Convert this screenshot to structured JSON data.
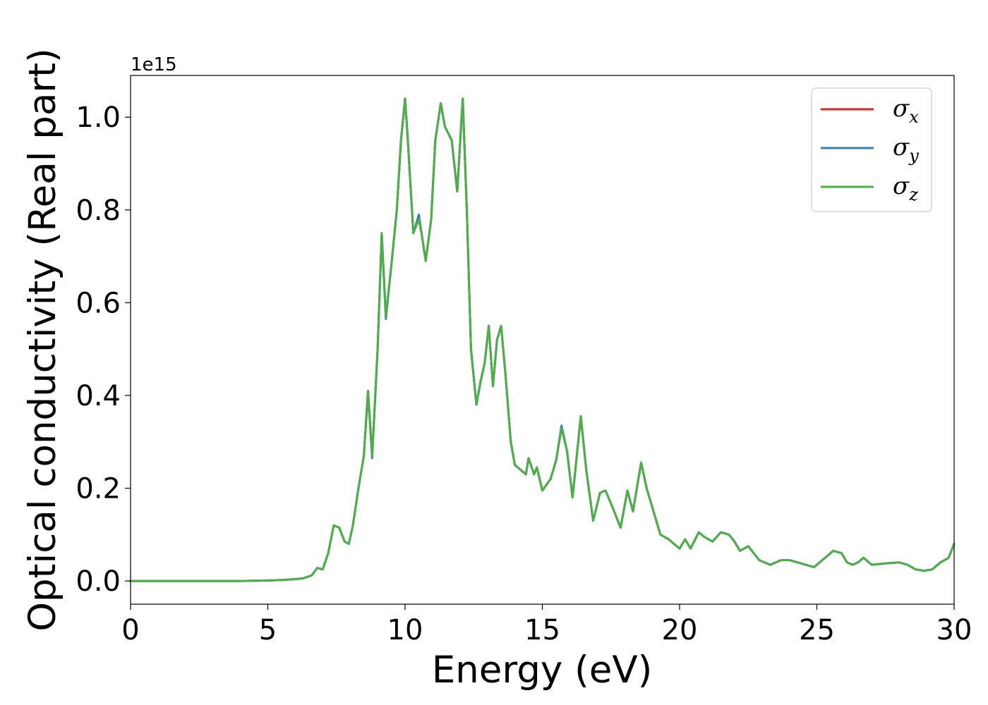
{
  "chart_data": {
    "type": "line",
    "xlabel": "Energy (eV)",
    "ylabel": "Optical conductivity (Real part)",
    "y_offset_label": "1e15",
    "y_scale": 1000000000000000.0,
    "xlim": [
      0,
      30
    ],
    "ylim": [
      -0.05,
      1.09
    ],
    "xticks": [
      0,
      5,
      10,
      15,
      20,
      25,
      30
    ],
    "xtick_labels": [
      "0",
      "5",
      "10",
      "15",
      "20",
      "25",
      "30"
    ],
    "yticks": [
      0.0,
      0.2,
      0.4,
      0.6,
      0.8,
      1.0
    ],
    "ytick_labels": [
      "0.0",
      "0.2",
      "0.4",
      "0.6",
      "0.8",
      "1.0"
    ],
    "grid": false,
    "legend_position": "top-right",
    "series": [
      {
        "name": "σx",
        "legend_symbol": "σ",
        "legend_sub": "x",
        "color": "#d62728",
        "x": [
          0,
          2,
          4,
          5,
          5.5,
          6,
          6.3,
          6.6,
          6.8,
          7.0,
          7.2,
          7.4,
          7.6,
          7.8,
          7.95,
          8.1,
          8.3,
          8.5,
          8.65,
          8.8,
          9.0,
          9.15,
          9.3,
          9.5,
          9.7,
          9.85,
          10.0,
          10.1,
          10.3,
          10.5,
          10.6,
          10.75,
          10.95,
          11.1,
          11.3,
          11.45,
          11.7,
          11.9,
          12.1,
          12.25,
          12.4,
          12.6,
          12.75,
          12.9,
          13.05,
          13.2,
          13.35,
          13.5,
          13.65,
          13.85,
          14.0,
          14.2,
          14.4,
          14.5,
          14.7,
          14.8,
          15.0,
          15.3,
          15.5,
          15.7,
          15.9,
          16.1,
          16.4,
          16.6,
          16.85,
          17.1,
          17.3,
          17.55,
          17.85,
          18.1,
          18.3,
          18.6,
          18.8,
          19.0,
          19.3,
          19.6,
          20.0,
          20.2,
          20.4,
          20.7,
          20.9,
          21.2,
          21.5,
          21.8,
          22.0,
          22.2,
          22.5,
          22.9,
          23.3,
          23.7,
          24.0,
          24.3,
          24.6,
          24.9,
          25.2,
          25.6,
          25.9,
          26.1,
          26.3,
          26.5,
          26.7,
          27.0,
          27.5,
          28.0,
          28.3,
          28.6,
          28.9,
          29.2,
          29.5,
          29.8,
          30.0
        ],
        "y": [
          0,
          0,
          0,
          0.001,
          0.002,
          0.004,
          0.006,
          0.012,
          0.028,
          0.025,
          0.06,
          0.12,
          0.115,
          0.085,
          0.08,
          0.12,
          0.2,
          0.27,
          0.41,
          0.27,
          0.5,
          0.75,
          0.57,
          0.68,
          0.8,
          0.95,
          1.04,
          0.95,
          0.75,
          0.78,
          0.75,
          0.69,
          0.78,
          0.95,
          1.03,
          0.98,
          0.95,
          0.84,
          1.04,
          0.8,
          0.5,
          0.38,
          0.43,
          0.47,
          0.55,
          0.42,
          0.52,
          0.55,
          0.45,
          0.3,
          0.25,
          0.24,
          0.23,
          0.265,
          0.23,
          0.245,
          0.195,
          0.22,
          0.26,
          0.33,
          0.28,
          0.18,
          0.355,
          0.24,
          0.13,
          0.19,
          0.195,
          0.16,
          0.115,
          0.195,
          0.15,
          0.255,
          0.2,
          0.16,
          0.1,
          0.09,
          0.07,
          0.09,
          0.07,
          0.105,
          0.095,
          0.085,
          0.105,
          0.1,
          0.085,
          0.065,
          0.075,
          0.045,
          0.035,
          0.045,
          0.045,
          0.04,
          0.035,
          0.03,
          0.045,
          0.065,
          0.06,
          0.04,
          0.035,
          0.04,
          0.05,
          0.035,
          0.038,
          0.04,
          0.035,
          0.025,
          0.022,
          0.025,
          0.04,
          0.05,
          0.08
        ]
      },
      {
        "name": "σy",
        "legend_symbol": "σ",
        "legend_sub": "y",
        "color": "#377eb8",
        "x": [
          0,
          2,
          4,
          5,
          5.5,
          6,
          6.3,
          6.6,
          6.8,
          7.0,
          7.2,
          7.4,
          7.6,
          7.8,
          7.95,
          8.1,
          8.3,
          8.5,
          8.65,
          8.8,
          9.0,
          9.15,
          9.3,
          9.5,
          9.7,
          9.85,
          10.0,
          10.1,
          10.3,
          10.5,
          10.6,
          10.75,
          10.95,
          11.1,
          11.3,
          11.45,
          11.7,
          11.9,
          12.1,
          12.25,
          12.4,
          12.6,
          12.75,
          12.9,
          13.05,
          13.2,
          13.35,
          13.5,
          13.65,
          13.85,
          14.0,
          14.2,
          14.4,
          14.5,
          14.7,
          14.8,
          15.0,
          15.3,
          15.5,
          15.7,
          15.9,
          16.1,
          16.4,
          16.6,
          16.85,
          17.1,
          17.3,
          17.55,
          17.85,
          18.1,
          18.3,
          18.6,
          18.8,
          19.0,
          19.3,
          19.6,
          20.0,
          20.2,
          20.4,
          20.7,
          20.9,
          21.2,
          21.5,
          21.8,
          22.0,
          22.2,
          22.5,
          22.9,
          23.3,
          23.7,
          24.0,
          24.3,
          24.6,
          24.9,
          25.2,
          25.6,
          25.9,
          26.1,
          26.3,
          26.5,
          26.7,
          27.0,
          27.5,
          28.0,
          28.3,
          28.6,
          28.9,
          29.2,
          29.5,
          29.8,
          30.0
        ],
        "y": [
          0,
          0,
          0,
          0.001,
          0.002,
          0.004,
          0.006,
          0.012,
          0.028,
          0.025,
          0.06,
          0.12,
          0.115,
          0.085,
          0.08,
          0.12,
          0.2,
          0.27,
          0.41,
          0.265,
          0.5,
          0.745,
          0.565,
          0.68,
          0.8,
          0.95,
          1.04,
          0.95,
          0.75,
          0.79,
          0.75,
          0.69,
          0.78,
          0.95,
          1.03,
          0.98,
          0.95,
          0.84,
          1.04,
          0.8,
          0.5,
          0.38,
          0.43,
          0.47,
          0.55,
          0.42,
          0.52,
          0.55,
          0.45,
          0.3,
          0.25,
          0.24,
          0.23,
          0.265,
          0.23,
          0.245,
          0.195,
          0.22,
          0.26,
          0.335,
          0.28,
          0.18,
          0.355,
          0.24,
          0.13,
          0.19,
          0.195,
          0.16,
          0.115,
          0.195,
          0.15,
          0.255,
          0.2,
          0.16,
          0.1,
          0.09,
          0.07,
          0.09,
          0.07,
          0.105,
          0.095,
          0.085,
          0.105,
          0.1,
          0.085,
          0.065,
          0.075,
          0.045,
          0.035,
          0.045,
          0.045,
          0.04,
          0.035,
          0.03,
          0.045,
          0.065,
          0.06,
          0.04,
          0.035,
          0.04,
          0.05,
          0.035,
          0.038,
          0.04,
          0.035,
          0.025,
          0.022,
          0.025,
          0.04,
          0.05,
          0.08
        ]
      },
      {
        "name": "σz",
        "legend_symbol": "σ",
        "legend_sub": "z",
        "color": "#4daf4a",
        "x": [
          0,
          2,
          4,
          5,
          5.5,
          6,
          6.3,
          6.6,
          6.8,
          7.0,
          7.2,
          7.4,
          7.6,
          7.8,
          7.95,
          8.1,
          8.3,
          8.5,
          8.65,
          8.8,
          9.0,
          9.15,
          9.3,
          9.5,
          9.7,
          9.85,
          10.0,
          10.1,
          10.3,
          10.5,
          10.6,
          10.75,
          10.95,
          11.1,
          11.3,
          11.45,
          11.7,
          11.9,
          12.1,
          12.25,
          12.4,
          12.6,
          12.75,
          12.9,
          13.05,
          13.2,
          13.35,
          13.5,
          13.65,
          13.85,
          14.0,
          14.2,
          14.4,
          14.5,
          14.7,
          14.8,
          15.0,
          15.3,
          15.5,
          15.7,
          15.9,
          16.1,
          16.4,
          16.6,
          16.85,
          17.1,
          17.3,
          17.55,
          17.85,
          18.1,
          18.3,
          18.6,
          18.8,
          19.0,
          19.3,
          19.6,
          20.0,
          20.2,
          20.4,
          20.7,
          20.9,
          21.2,
          21.5,
          21.8,
          22.0,
          22.2,
          22.5,
          22.9,
          23.3,
          23.7,
          24.0,
          24.3,
          24.6,
          24.9,
          25.2,
          25.6,
          25.9,
          26.1,
          26.3,
          26.5,
          26.7,
          27.0,
          27.5,
          28.0,
          28.3,
          28.6,
          28.9,
          29.2,
          29.5,
          29.8,
          30.0
        ],
        "y": [
          0,
          0,
          0,
          0.001,
          0.002,
          0.004,
          0.006,
          0.012,
          0.028,
          0.025,
          0.06,
          0.12,
          0.115,
          0.085,
          0.08,
          0.12,
          0.2,
          0.27,
          0.41,
          0.27,
          0.5,
          0.75,
          0.57,
          0.68,
          0.8,
          0.95,
          1.04,
          0.95,
          0.75,
          0.78,
          0.75,
          0.69,
          0.78,
          0.95,
          1.03,
          0.98,
          0.95,
          0.84,
          1.04,
          0.8,
          0.5,
          0.38,
          0.43,
          0.47,
          0.55,
          0.42,
          0.52,
          0.55,
          0.45,
          0.3,
          0.25,
          0.24,
          0.23,
          0.265,
          0.23,
          0.245,
          0.195,
          0.22,
          0.26,
          0.33,
          0.28,
          0.18,
          0.355,
          0.24,
          0.13,
          0.19,
          0.195,
          0.16,
          0.115,
          0.195,
          0.15,
          0.255,
          0.2,
          0.16,
          0.1,
          0.09,
          0.07,
          0.09,
          0.07,
          0.105,
          0.095,
          0.085,
          0.105,
          0.1,
          0.085,
          0.065,
          0.075,
          0.045,
          0.035,
          0.045,
          0.045,
          0.04,
          0.035,
          0.03,
          0.045,
          0.065,
          0.06,
          0.04,
          0.035,
          0.04,
          0.05,
          0.035,
          0.038,
          0.04,
          0.035,
          0.025,
          0.022,
          0.025,
          0.04,
          0.05,
          0.08
        ]
      }
    ]
  }
}
